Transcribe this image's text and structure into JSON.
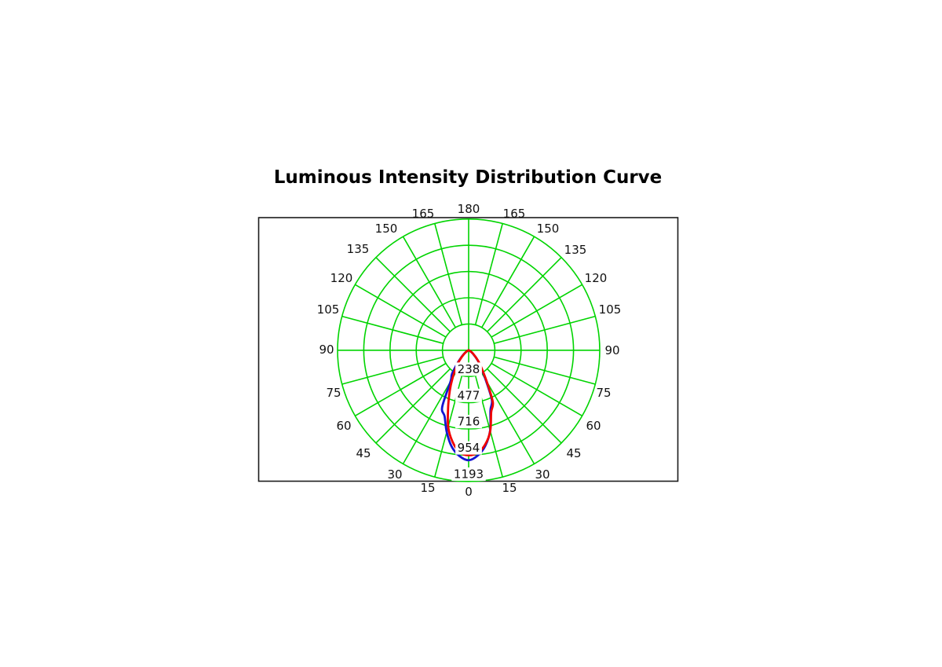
{
  "page": {
    "background": "#ffffff"
  },
  "chart_data": {
    "type": "polar",
    "subtype": "luminous-intensity-distribution",
    "title": "Luminous Intensity Distribution Curve",
    "angle_unit": "deg",
    "angle_convention": "0 deg at bottom (nadir), 180 deg at top, symmetric labels on both sides, ticks every 15 deg",
    "angle_ticks_deg": [
      0,
      15,
      30,
      45,
      60,
      75,
      90,
      105,
      120,
      135,
      150,
      165,
      180
    ],
    "ring_values": [
      238,
      477,
      716,
      954,
      1193
    ],
    "ring_labels": [
      "238",
      "477",
      "716",
      "954",
      "1193"
    ],
    "r_max": 1193,
    "grid": {
      "rings": 5,
      "spoke_step_deg": 15,
      "color": "#00d400"
    },
    "frame_color": "#1c1c1c",
    "text_color": "#111111",
    "legend": "none",
    "series": [
      {
        "name": "blue-curve",
        "color": "#1414d2",
        "points": [
          [
            -80,
            0
          ],
          [
            -75,
            1
          ],
          [
            -70,
            3
          ],
          [
            -65,
            8
          ],
          [
            -60,
            18
          ],
          [
            -55,
            35
          ],
          [
            -50,
            63
          ],
          [
            -45,
            104
          ],
          [
            -40,
            168
          ],
          [
            -35,
            265
          ],
          [
            -30,
            330
          ],
          [
            -25,
            570
          ],
          [
            -20,
            640
          ],
          [
            -15,
            770
          ],
          [
            -10,
            890
          ],
          [
            -5,
            965
          ],
          [
            0,
            1000
          ],
          [
            5,
            960
          ],
          [
            10,
            880
          ],
          [
            15,
            755
          ],
          [
            20,
            580
          ],
          [
            25,
            500
          ],
          [
            30,
            310
          ],
          [
            35,
            205
          ],
          [
            40,
            143
          ],
          [
            45,
            90
          ],
          [
            50,
            55
          ],
          [
            55,
            31
          ],
          [
            60,
            16
          ],
          [
            65,
            7
          ],
          [
            70,
            3
          ],
          [
            75,
            1
          ],
          [
            80,
            0
          ]
        ]
      },
      {
        "name": "red-curve",
        "color": "#f00000",
        "points": [
          [
            -80,
            0
          ],
          [
            -75,
            1
          ],
          [
            -70,
            3
          ],
          [
            -65,
            7
          ],
          [
            -60,
            16
          ],
          [
            -55,
            31
          ],
          [
            -50,
            56
          ],
          [
            -45,
            92
          ],
          [
            -40,
            148
          ],
          [
            -35,
            205
          ],
          [
            -30,
            295
          ],
          [
            -25,
            405
          ],
          [
            -20,
            545
          ],
          [
            -15,
            720
          ],
          [
            -10,
            845
          ],
          [
            -5,
            930
          ],
          [
            0,
            955
          ],
          [
            5,
            935
          ],
          [
            10,
            870
          ],
          [
            15,
            760
          ],
          [
            20,
            600
          ],
          [
            25,
            520
          ],
          [
            30,
            330
          ],
          [
            35,
            215
          ],
          [
            40,
            150
          ],
          [
            45,
            98
          ],
          [
            50,
            60
          ],
          [
            55,
            34
          ],
          [
            60,
            17
          ],
          [
            65,
            8
          ],
          [
            70,
            3
          ],
          [
            75,
            1
          ],
          [
            80,
            0
          ]
        ]
      }
    ]
  }
}
